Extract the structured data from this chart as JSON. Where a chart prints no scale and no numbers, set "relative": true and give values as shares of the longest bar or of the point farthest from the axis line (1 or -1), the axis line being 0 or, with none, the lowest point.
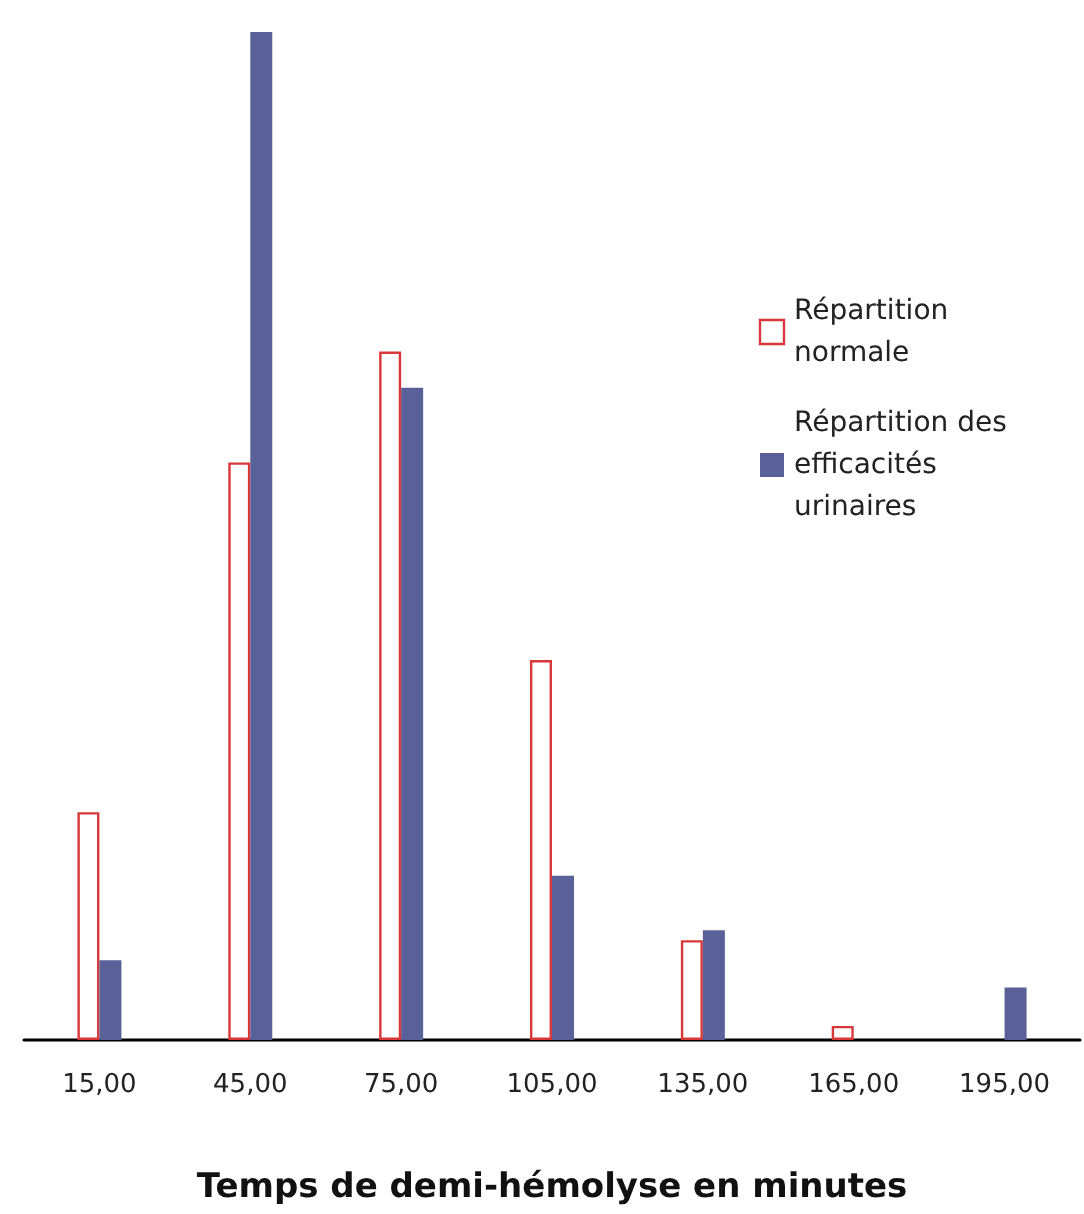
{
  "chart_data": {
    "type": "bar",
    "relative": true,
    "xlabel": "Temps de demi-hémolyse en minutes",
    "legend": "right",
    "categories": [
      "15,00",
      "45,00",
      "75,00",
      "105,00",
      "135,00",
      "165,00",
      "195,00"
    ],
    "series": [
      {
        "name": "Répartition normale",
        "color": "#d9383a",
        "values": [
          0.226,
          0.573,
          0.683,
          0.377,
          0.099,
          0.014,
          null
        ]
      },
      {
        "name": "Répartition des efficacités urinaires",
        "color": "#5a6199",
        "values": [
          0.079,
          1,
          0.647,
          0.163,
          0.109,
          0,
          0.052
        ]
      }
    ]
  }
}
